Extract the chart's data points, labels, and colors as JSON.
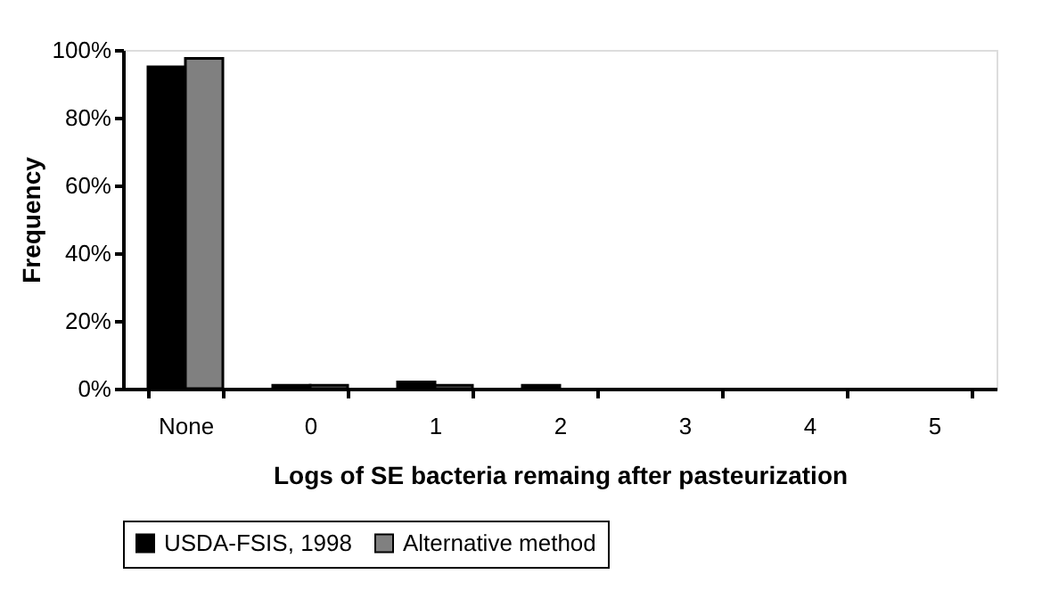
{
  "chart_data": {
    "type": "bar",
    "xlabel": "Logs of SE bacteria remaing after pasteurization",
    "ylabel": "Frequency",
    "categories": [
      "None",
      "0",
      "1",
      "2",
      "3",
      "4",
      "5"
    ],
    "series": [
      {
        "name": "USDA-FSIS, 1998",
        "color": "#000000",
        "values": [
          95,
          1,
          2,
          1,
          0,
          0,
          0
        ]
      },
      {
        "name": "Alternative method",
        "color": "#808080",
        "values": [
          97.5,
          1,
          1,
          0,
          0,
          0,
          0
        ]
      }
    ],
    "ylim": [
      0,
      100
    ],
    "yticks": [
      {
        "value": 0,
        "label": "0%"
      },
      {
        "value": 20,
        "label": "20%"
      },
      {
        "value": 40,
        "label": "40%"
      },
      {
        "value": 60,
        "label": "60%"
      },
      {
        "value": 80,
        "label": "80%"
      },
      {
        "value": 100,
        "label": "100%"
      }
    ],
    "grid": false,
    "legend": "bottom"
  }
}
